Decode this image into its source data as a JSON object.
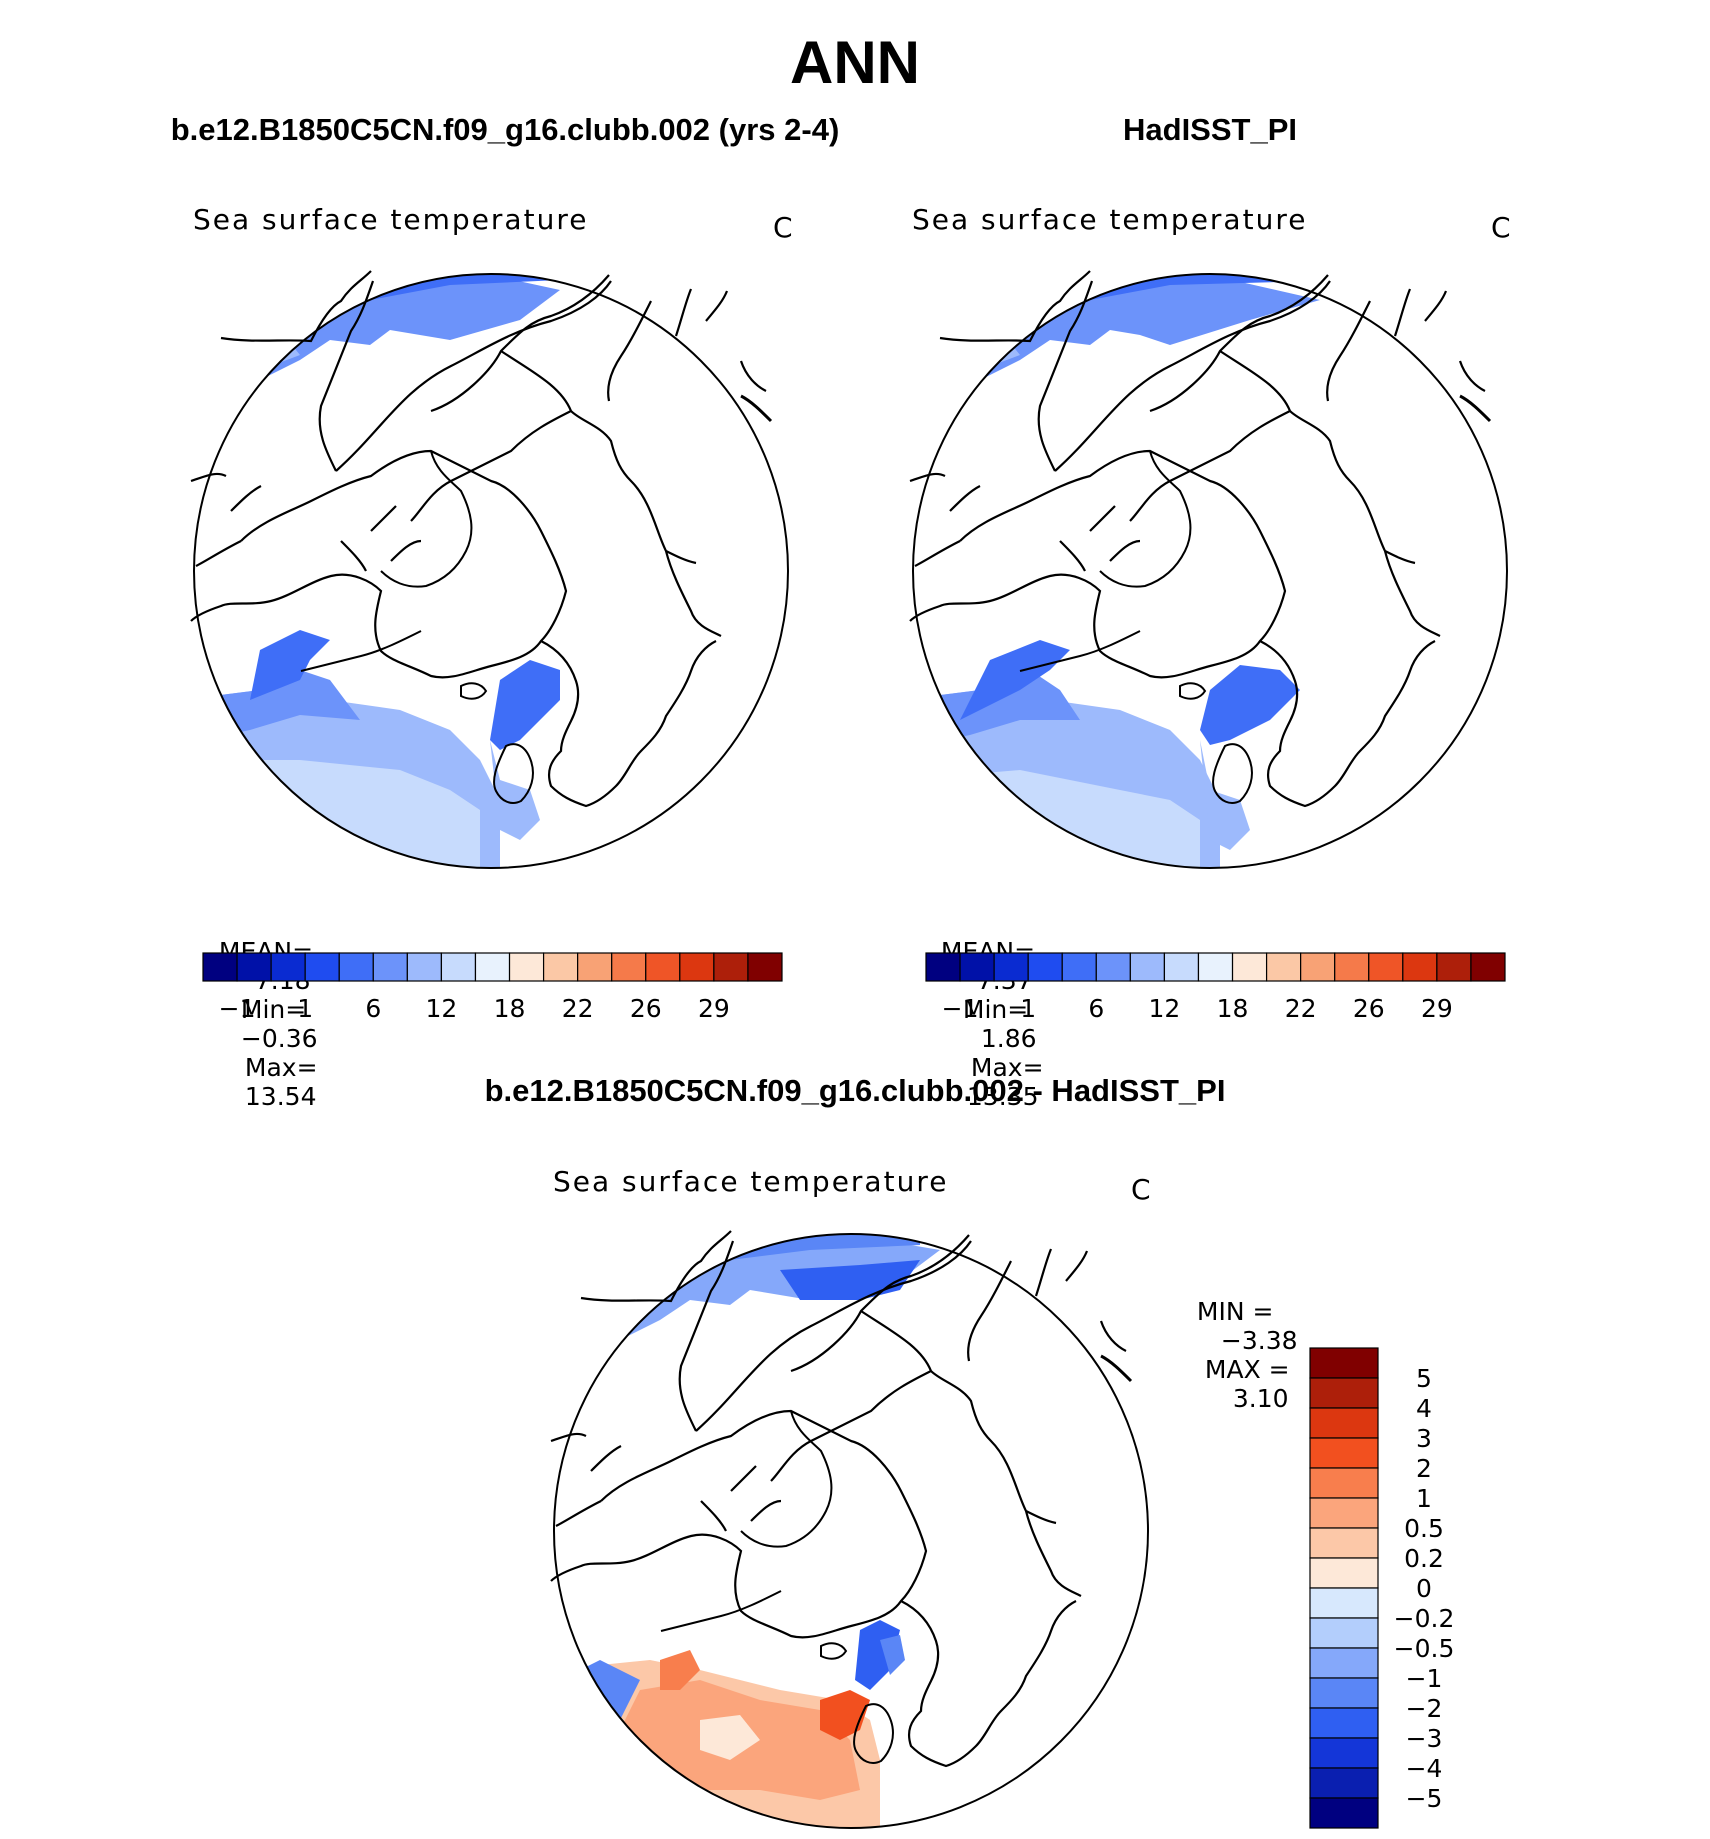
{
  "figure": {
    "title": "ANN",
    "left_panel_title": "b.e12.B1850C5CN.f09_g16.clubb.002 (yrs 2-4)",
    "right_panel_title": "HadISST_PI",
    "diff_panel_title": "b.e12.B1850C5CN.f09_g16.clubb.002 - HadISST_PI"
  },
  "chart_data": [
    {
      "type": "heatmap",
      "title": "Sea surface temperature",
      "units": "C",
      "projection": "north polar stereographic",
      "stats": {
        "mean_label": "MEAN=",
        "mean": "7.18",
        "min_label": "Min=",
        "min": "−0.36",
        "max_label": "Max=",
        "max": "13.54"
      },
      "colorbar": {
        "orientation": "horizontal",
        "levels": [
          "−1",
          "1",
          "6",
          "12",
          "18",
          "22",
          "26",
          "29"
        ],
        "colors": [
          "#000080",
          "#0011a8",
          "#0a2bd1",
          "#1f4cf0",
          "#3f6ef7",
          "#6c93fa",
          "#9dbafc",
          "#c7dbfd",
          "#e8f2fd",
          "#fde8d8",
          "#fbc8a6",
          "#f8a275",
          "#f57a4a",
          "#ef5527",
          "#dc3710",
          "#ad1f0a",
          "#800000"
        ]
      }
    },
    {
      "type": "heatmap",
      "title": "Sea surface temperature",
      "units": "C",
      "projection": "north polar stereographic",
      "stats": {
        "mean_label": "MEAN=",
        "mean": "7.37",
        "min_label": "Min=",
        "min": "1.86",
        "max_label": "Max=",
        "max": "13.35"
      },
      "colorbar": {
        "orientation": "horizontal",
        "levels": [
          "−1",
          "1",
          "6",
          "12",
          "18",
          "22",
          "26",
          "29"
        ],
        "colors": [
          "#000080",
          "#0011a8",
          "#0a2bd1",
          "#1f4cf0",
          "#3f6ef7",
          "#6c93fa",
          "#9dbafc",
          "#c7dbfd",
          "#e8f2fd",
          "#fde8d8",
          "#fbc8a6",
          "#f8a275",
          "#f57a4a",
          "#ef5527",
          "#dc3710",
          "#ad1f0a",
          "#800000"
        ]
      }
    },
    {
      "type": "heatmap",
      "title": "Sea surface temperature",
      "units": "C",
      "projection": "north polar stereographic",
      "stats": {
        "min_label": "MIN =",
        "min": "−3.38",
        "max_label": "MAX =",
        "max": "3.10"
      },
      "colorbar": {
        "orientation": "vertical",
        "levels": [
          "5",
          "4",
          "3",
          "2",
          "1",
          "0.5",
          "0.2",
          "0",
          "−0.2",
          "−0.5",
          "−1",
          "−2",
          "−3",
          "−4",
          "−5"
        ],
        "colors": [
          "#800000",
          "#ad1f0a",
          "#dc3710",
          "#f2501f",
          "#f87e4d",
          "#fba57c",
          "#fcc8a8",
          "#fde8d8",
          "#d7e8fd",
          "#b3cefc",
          "#85a8fa",
          "#5a86f6",
          "#2f5ff2",
          "#1436d8",
          "#0a1fb0",
          "#000080"
        ]
      }
    }
  ]
}
